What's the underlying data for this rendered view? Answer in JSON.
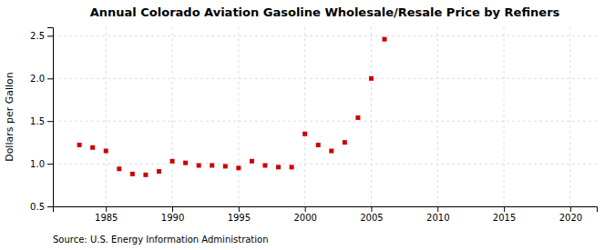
{
  "chart_data": {
    "type": "scatter",
    "title": "Annual Colorado Aviation Gasoline Wholesale/Resale Price by Refiners",
    "ylabel": "Dollars per Gallon",
    "source": "Source: U.S. Energy Information Administration",
    "x": [
      1983,
      1984,
      1985,
      1986,
      1987,
      1988,
      1989,
      1990,
      1991,
      1992,
      1993,
      1994,
      1995,
      1996,
      1997,
      1998,
      1999,
      2000,
      2001,
      2002,
      2003,
      2004,
      2005,
      2006
    ],
    "values": [
      1.22,
      1.19,
      1.15,
      0.94,
      0.88,
      0.87,
      0.91,
      1.03,
      1.01,
      0.98,
      0.98,
      0.97,
      0.95,
      1.03,
      0.98,
      0.96,
      0.96,
      1.35,
      1.22,
      1.15,
      1.25,
      1.54,
      2.0,
      2.46
    ],
    "color": "#cc0000",
    "marker": "square",
    "xlim": [
      1981,
      2022
    ],
    "ylim": [
      0.5,
      2.6
    ],
    "xticks": [
      1985,
      1990,
      1995,
      2000,
      2005,
      2010,
      2015,
      2020
    ],
    "yticks": [
      0.5,
      {
        "value": 1.0,
        "label": "1.0"
      },
      1.5,
      {
        "value": 2.0,
        "label": "2.0"
      },
      2.5
    ],
    "grid": true
  }
}
